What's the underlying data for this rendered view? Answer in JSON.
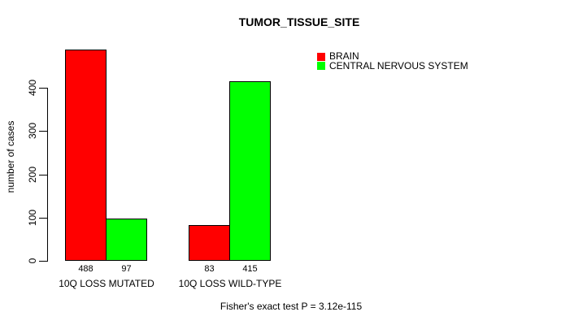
{
  "title": "TUMOR_TISSUE_SITE",
  "y_axis": {
    "label": "number of cases",
    "ticks": [
      0,
      100,
      200,
      300,
      400
    ]
  },
  "legend": {
    "items": [
      {
        "label": "BRAIN",
        "color": "#ff0000"
      },
      {
        "label": "CENTRAL NERVOUS SYSTEM",
        "color": "#00ff00"
      }
    ]
  },
  "footer": "Fisher's exact test P = 3.12e-115",
  "colors": {
    "bar_red": "#ff0000",
    "bar_green": "#00ff00",
    "bar_border": "#000000",
    "axis": "#000000",
    "background": "#ffffff"
  },
  "chart_data": {
    "type": "bar",
    "title": "TUMOR_TISSUE_SITE",
    "categories": [
      "10Q LOSS MUTATED",
      "10Q LOSS WILD-TYPE"
    ],
    "series": [
      {
        "name": "BRAIN",
        "color": "#ff0000",
        "values": [
          488,
          83
        ]
      },
      {
        "name": "CENTRAL NERVOUS SYSTEM",
        "color": "#00ff00",
        "values": [
          97,
          415
        ]
      }
    ],
    "bar_value_labels": [
      [
        488,
        97
      ],
      [
        83,
        415
      ]
    ],
    "xlabel": "",
    "ylabel": "number of cases",
    "yticks": [
      0,
      100,
      200,
      300,
      400
    ],
    "ylim": [
      0,
      500
    ],
    "grid": false,
    "legend_position": "top-right",
    "grouped": true,
    "annotation": "Fisher's exact test P = 3.12e-115"
  }
}
